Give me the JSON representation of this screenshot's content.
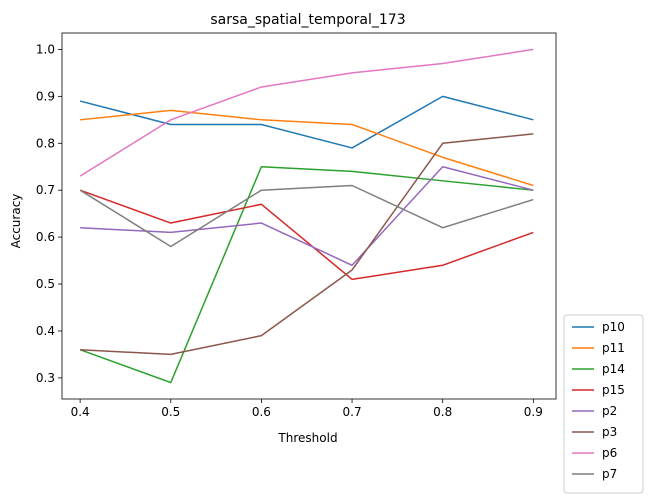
{
  "chart_data": {
    "type": "line",
    "title": "sarsa_spatial_temporal_173",
    "xlabel": "Threshold",
    "ylabel": "Accuracy",
    "x": [
      0.4,
      0.5,
      0.6,
      0.7,
      0.8,
      0.9
    ],
    "x_ticks": [
      "0.4",
      "0.5",
      "0.6",
      "0.7",
      "0.8",
      "0.9"
    ],
    "y_ticks": [
      "0.3",
      "0.4",
      "0.5",
      "0.6",
      "0.7",
      "0.8",
      "0.9",
      "1.0"
    ],
    "xlim": [
      0.38,
      0.925
    ],
    "ylim": [
      0.255,
      1.035
    ],
    "grid": false,
    "legend_position": "outside lower right",
    "series": [
      {
        "name": "p10",
        "color": "#1f77b4",
        "values": [
          0.89,
          0.84,
          0.84,
          0.79,
          0.9,
          0.85
        ]
      },
      {
        "name": "p11",
        "color": "#ff7f0e",
        "values": [
          0.85,
          0.87,
          0.85,
          0.84,
          0.77,
          0.71
        ]
      },
      {
        "name": "p14",
        "color": "#2ca02c",
        "values": [
          0.36,
          0.29,
          0.75,
          0.74,
          0.72,
          0.7
        ]
      },
      {
        "name": "p15",
        "color": "#d62728",
        "values": [
          0.7,
          0.63,
          0.67,
          0.51,
          0.54,
          0.61
        ]
      },
      {
        "name": "p2",
        "color": "#9467bd",
        "values": [
          0.62,
          0.61,
          0.63,
          0.54,
          0.75,
          0.7
        ]
      },
      {
        "name": "p3",
        "color": "#8c564b",
        "values": [
          0.36,
          0.35,
          0.39,
          0.53,
          0.8,
          0.82
        ]
      },
      {
        "name": "p6",
        "color": "#e377c2",
        "values": [
          0.73,
          0.85,
          0.92,
          0.95,
          0.97,
          1.0
        ]
      },
      {
        "name": "p7",
        "color": "#7f7f7f",
        "values": [
          0.7,
          0.58,
          0.7,
          0.71,
          0.62,
          0.68
        ]
      }
    ]
  }
}
